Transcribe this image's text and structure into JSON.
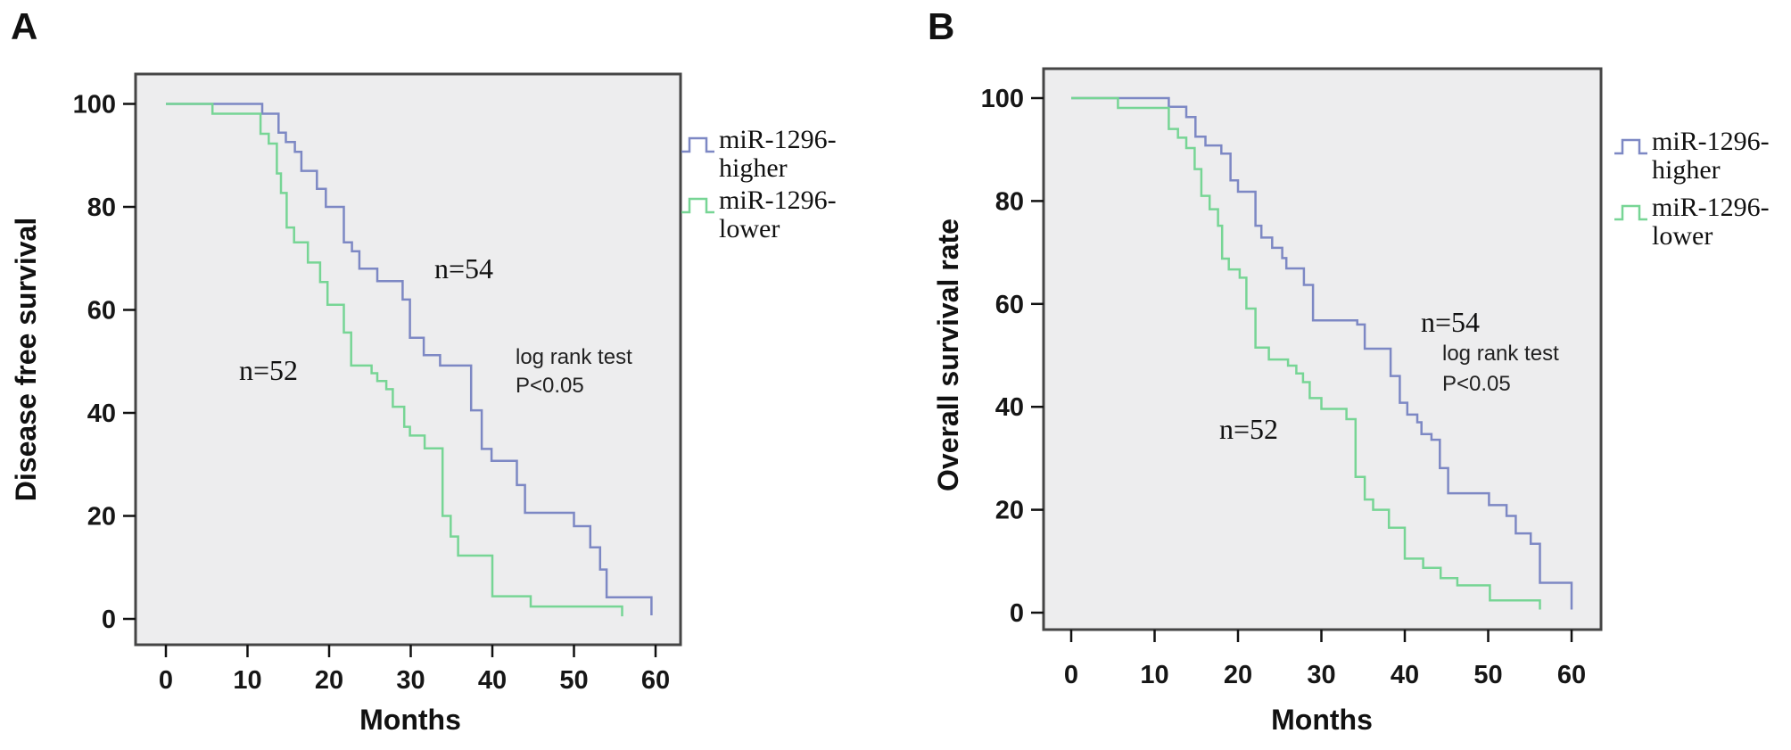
{
  "figure": {
    "background": "#ffffff",
    "description_note": "Two-panel Kaplan-Meier survival figure"
  },
  "chart_data": [
    {
      "type": "line",
      "subtype": "kaplan-meier-step",
      "panel_label": "A",
      "ylabel": "Disease free survival",
      "xlabel": "Months",
      "x_ticks": [
        0,
        10,
        20,
        30,
        40,
        50,
        60
      ],
      "y_ticks": [
        100,
        80,
        60,
        40,
        20,
        0
      ],
      "xlim": [
        0,
        63
      ],
      "ylim": [
        0,
        105
      ],
      "grid": "off",
      "plot_bg": "#ededee",
      "legend_position": "right-outside",
      "annotations": {
        "n_higher": "n=54",
        "n_lower": "n=52",
        "stat_line1": "log rank test",
        "stat_line2": "P<0.05"
      },
      "series": [
        {
          "name": "miR-1296-higher",
          "legend_lines": [
            "miR-1296-",
            "higher"
          ],
          "n": 54,
          "color": "#7d88c4",
          "points": [
            [
              0,
              100
            ],
            [
              11.8,
              98.1
            ],
            [
              13.8,
              94.4
            ],
            [
              14.7,
              92.6
            ],
            [
              15.8,
              90.7
            ],
            [
              16.6,
              87.0
            ],
            [
              18.5,
              83.5
            ],
            [
              19.6,
              80.0
            ],
            [
              21.8,
              73.1
            ],
            [
              22.8,
              71.4
            ],
            [
              23.7,
              68.0
            ],
            [
              25.9,
              65.6
            ],
            [
              29.0,
              62.0
            ],
            [
              29.9,
              54.6
            ],
            [
              31.6,
              51.2
            ],
            [
              33.6,
              49.2
            ],
            [
              37.4,
              40.5
            ],
            [
              38.7,
              33.0
            ],
            [
              39.9,
              30.7
            ],
            [
              43.0,
              26.0
            ],
            [
              44.0,
              20.6
            ],
            [
              50.0,
              18.0
            ],
            [
              52.0,
              13.9
            ],
            [
              53.2,
              9.6
            ],
            [
              54.0,
              4.2
            ],
            [
              59.5,
              0.7
            ]
          ]
        },
        {
          "name": "miR-1296-lower",
          "legend_lines": [
            "miR-1296-",
            "lower"
          ],
          "n": 52,
          "color": "#77d595",
          "points": [
            [
              0,
              100
            ],
            [
              5.7,
              98.1
            ],
            [
              11.6,
              94.2
            ],
            [
              12.6,
              92.3
            ],
            [
              13.6,
              86.5
            ],
            [
              14.1,
              82.7
            ],
            [
              14.8,
              76.0
            ],
            [
              15.7,
              73.1
            ],
            [
              17.4,
              69.2
            ],
            [
              18.9,
              65.4
            ],
            [
              19.8,
              61.0
            ],
            [
              21.8,
              55.6
            ],
            [
              22.7,
              49.2
            ],
            [
              25.2,
              47.7
            ],
            [
              25.9,
              46.2
            ],
            [
              27.0,
              44.6
            ],
            [
              27.8,
              41.2
            ],
            [
              29.2,
              37.3
            ],
            [
              29.9,
              35.6
            ],
            [
              31.7,
              33.1
            ],
            [
              33.9,
              20.0
            ],
            [
              34.9,
              16.0
            ],
            [
              35.8,
              12.3
            ],
            [
              40.0,
              4.4
            ],
            [
              44.7,
              2.4
            ],
            [
              55.9,
              0.5
            ]
          ]
        }
      ]
    },
    {
      "type": "line",
      "subtype": "kaplan-meier-step",
      "panel_label": "B",
      "ylabel": "Overall survival rate",
      "xlabel": "Months",
      "x_ticks": [
        0,
        10,
        20,
        30,
        40,
        50,
        60
      ],
      "y_ticks": [
        100,
        80,
        60,
        40,
        20,
        0
      ],
      "xlim": [
        0,
        63
      ],
      "ylim": [
        0,
        105
      ],
      "grid": "off",
      "plot_bg": "#ededee",
      "legend_position": "right-outside",
      "annotations": {
        "n_higher": "n=54",
        "n_lower": "n=52",
        "stat_line1": "log rank test",
        "stat_line2": "P<0.05"
      },
      "series": [
        {
          "name": "miR-1296-higher",
          "legend_lines": [
            "miR-1296-",
            "higher"
          ],
          "n": 54,
          "color": "#7d88c4",
          "points": [
            [
              0,
              100
            ],
            [
              11.7,
              98.3
            ],
            [
              13.8,
              96.3
            ],
            [
              14.9,
              92.5
            ],
            [
              16.1,
              90.8
            ],
            [
              18.0,
              89.2
            ],
            [
              19.1,
              84.0
            ],
            [
              20.0,
              81.8
            ],
            [
              22.1,
              75.2
            ],
            [
              22.8,
              72.9
            ],
            [
              24.1,
              70.9
            ],
            [
              25.3,
              68.9
            ],
            [
              25.8,
              66.9
            ],
            [
              27.9,
              63.7
            ],
            [
              29.0,
              56.8
            ],
            [
              34.3,
              56.0
            ],
            [
              35.2,
              51.3
            ],
            [
              38.3,
              46.0
            ],
            [
              39.4,
              40.8
            ],
            [
              40.3,
              38.5
            ],
            [
              41.5,
              37.0
            ],
            [
              42.0,
              34.7
            ],
            [
              43.2,
              33.6
            ],
            [
              44.2,
              28.1
            ],
            [
              45.2,
              23.2
            ],
            [
              50.1,
              20.9
            ],
            [
              52.2,
              18.8
            ],
            [
              53.3,
              15.4
            ],
            [
              55.1,
              13.4
            ],
            [
              56.2,
              5.8
            ],
            [
              60.0,
              0.6
            ]
          ]
        },
        {
          "name": "miR-1296-lower",
          "legend_lines": [
            "miR-1296-",
            "lower"
          ],
          "n": 52,
          "color": "#77d595",
          "points": [
            [
              0,
              100
            ],
            [
              5.6,
              98.1
            ],
            [
              11.7,
              94.0
            ],
            [
              12.8,
              92.3
            ],
            [
              13.8,
              90.3
            ],
            [
              14.8,
              86.2
            ],
            [
              15.6,
              81.0
            ],
            [
              16.6,
              78.4
            ],
            [
              17.6,
              75.2
            ],
            [
              18.1,
              68.8
            ],
            [
              18.9,
              66.7
            ],
            [
              20.2,
              65.1
            ],
            [
              21.0,
              59.1
            ],
            [
              22.1,
              51.5
            ],
            [
              23.7,
              49.2
            ],
            [
              26.0,
              48.0
            ],
            [
              27.0,
              46.5
            ],
            [
              27.8,
              44.8
            ],
            [
              28.6,
              41.7
            ],
            [
              30.0,
              39.6
            ],
            [
              33.0,
              37.6
            ],
            [
              34.1,
              26.4
            ],
            [
              35.2,
              22.0
            ],
            [
              36.2,
              20.0
            ],
            [
              38.1,
              16.5
            ],
            [
              40.0,
              10.5
            ],
            [
              42.2,
              8.7
            ],
            [
              44.3,
              6.7
            ],
            [
              46.3,
              5.3
            ],
            [
              50.2,
              2.4
            ],
            [
              56.2,
              0.6
            ]
          ]
        }
      ]
    }
  ]
}
